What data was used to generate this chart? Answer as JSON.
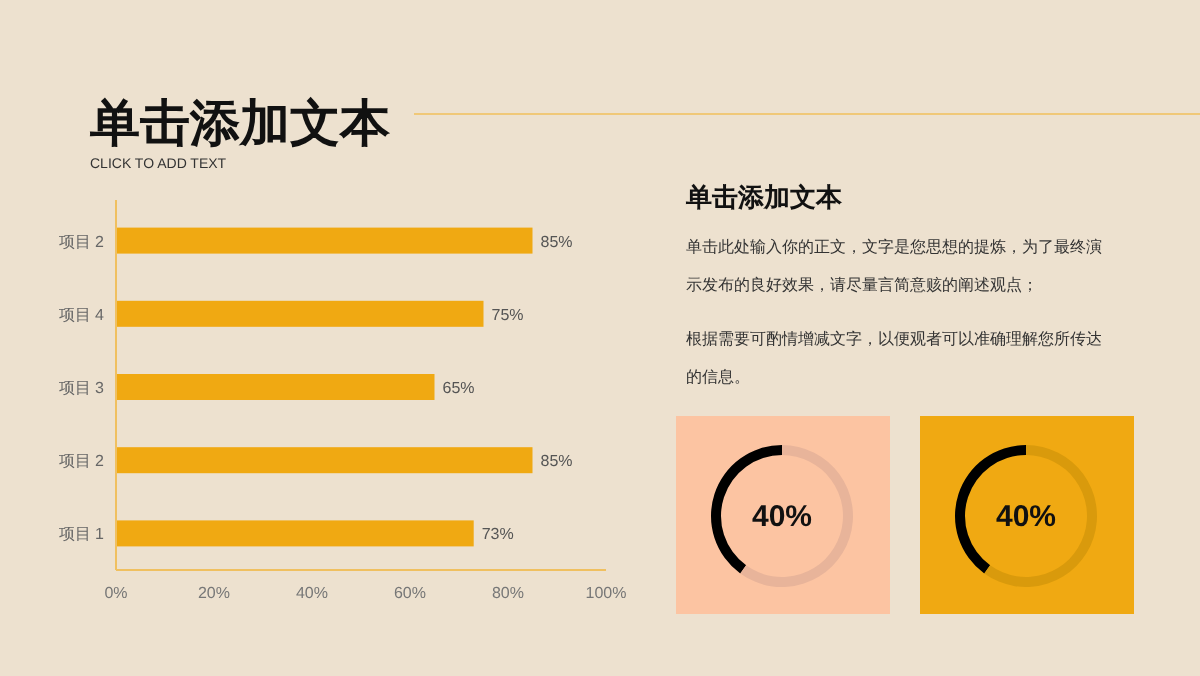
{
  "chart_data": [
    {
      "type": "bar",
      "orientation": "horizontal",
      "title": "单击添加文本",
      "subtitle": "CLICK TO ADD TEXT",
      "categories": [
        "项目 2",
        "项目 4",
        "项目 3",
        "项目 2",
        "项目 1"
      ],
      "values": [
        85,
        75,
        65,
        85,
        73
      ],
      "value_labels": [
        "85%",
        "75%",
        "65%",
        "85%",
        "73%"
      ],
      "color": "#f0a912",
      "xlim": [
        0,
        100
      ],
      "xticks": [
        {
          "value": 0,
          "label": "0%"
        },
        {
          "value": 20,
          "label": "20%"
        },
        {
          "value": 40,
          "label": "40%"
        },
        {
          "value": 60,
          "label": "60%"
        },
        {
          "value": 80,
          "label": "80%"
        },
        {
          "value": 100,
          "label": "100%"
        }
      ]
    },
    {
      "type": "other",
      "title": "单击添加文本",
      "annotations": [
        "单击此处输入你的正文，文字是您思想的提炼，为了最终演示发布的良好效果，请尽量言简意赅的阐述观点；",
        "根据需要可酌情增减文字，以便观者可以准确理解您所传达的信息。"
      ]
    },
    {
      "type": "donut",
      "categories": [
        null,
        null
      ],
      "values": [
        40,
        60
      ],
      "colors": [
        "#000000",
        "#e8b49a"
      ],
      "annotations": [
        "40%"
      ]
    },
    {
      "type": "donut",
      "categories": [
        null,
        null
      ],
      "values": [
        40,
        60
      ],
      "colors": [
        "#000000",
        "#d99a0c"
      ],
      "annotations": [
        "40%"
      ]
    }
  ]
}
